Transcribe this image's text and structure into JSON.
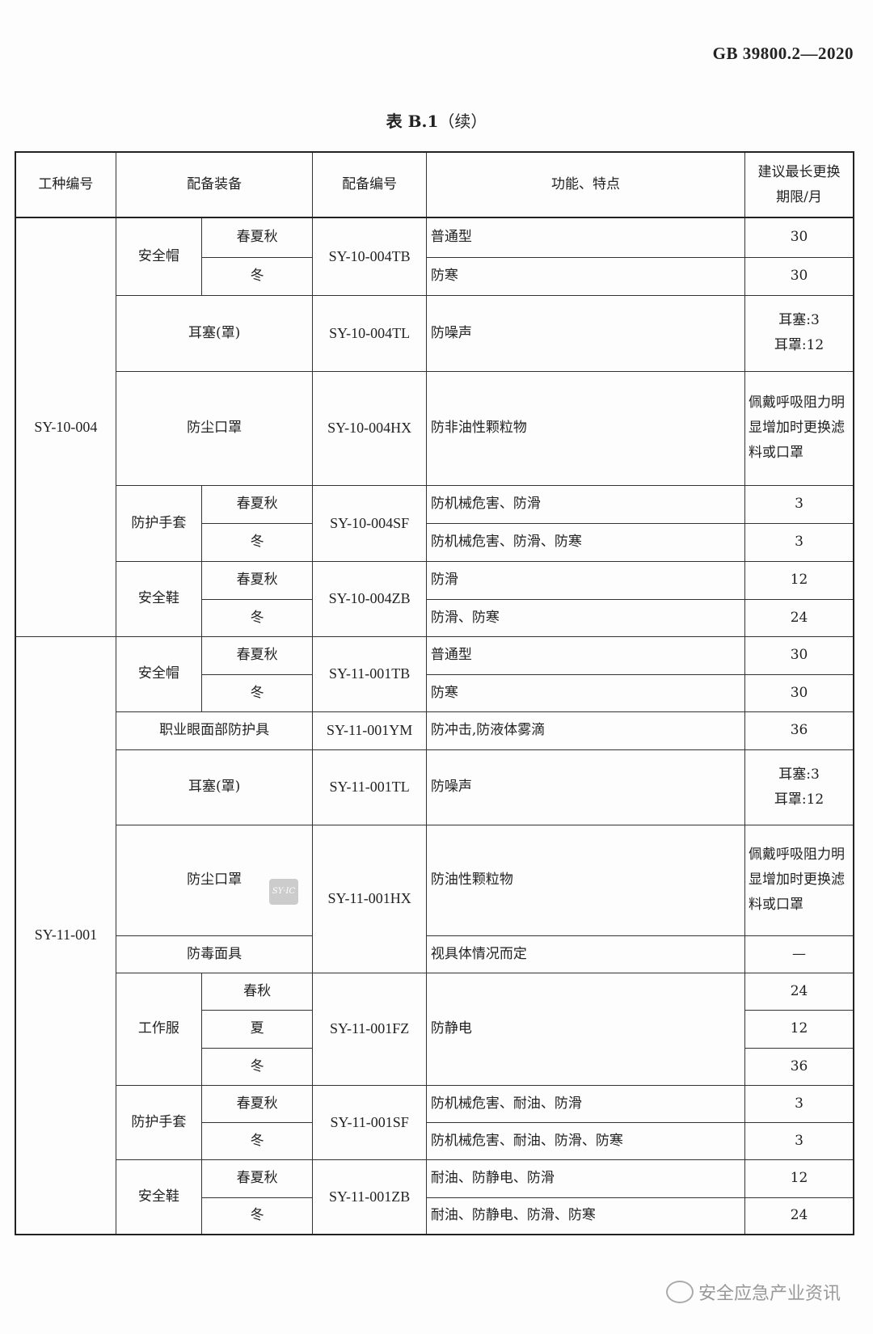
{
  "standard_number": "GB 39800.2—2020",
  "table_title": {
    "label": "表 B.1",
    "suffix": "（续）"
  },
  "headers": [
    "工种编号",
    "配备装备",
    "配备编号",
    "功能、特点",
    "建议最长更换期限/月"
  ],
  "rows": [
    [
      {
        "t": "SY-10-004",
        "rs": 8,
        "c": "id"
      },
      {
        "t": "安全帽",
        "rs": 2
      },
      {
        "t": "春夏秋"
      },
      {
        "t": "SY-10-004TB",
        "rs": 2,
        "c": "id"
      },
      {
        "t": "普通型",
        "c": "left"
      },
      {
        "t": "30"
      }
    ],
    [
      {
        "t": "冬"
      },
      {
        "t": "防寒",
        "c": "left"
      },
      {
        "t": "30"
      }
    ],
    [
      {
        "t": "耳塞(罩)",
        "cs": 2
      },
      {
        "t": "SY-10-004TL",
        "c": "id"
      },
      {
        "t": "防噪声",
        "c": "left"
      },
      {
        "t": "耳塞:3\n耳罩:12"
      }
    ],
    [
      {
        "t": "防尘口罩",
        "cs": 2
      },
      {
        "t": "SY-10-004HX",
        "c": "id"
      },
      {
        "t": "防非油性颗粒物",
        "c": "left"
      },
      {
        "t": "佩戴呼吸阻力明显增加时更换滤料或口罩"
      }
    ],
    [
      {
        "t": "防护手套",
        "rs": 2
      },
      {
        "t": "春夏秋"
      },
      {
        "t": "SY-10-004SF",
        "rs": 2,
        "c": "id"
      },
      {
        "t": "防机械危害、防滑",
        "c": "left"
      },
      {
        "t": "3"
      }
    ],
    [
      {
        "t": "冬"
      },
      {
        "t": "防机械危害、防滑、防寒",
        "c": "left"
      },
      {
        "t": "3"
      }
    ],
    [
      {
        "t": "安全鞋",
        "rs": 2
      },
      {
        "t": "春夏秋"
      },
      {
        "t": "SY-10-004ZB",
        "rs": 2,
        "c": "id"
      },
      {
        "t": "防滑",
        "c": "left"
      },
      {
        "t": "12"
      }
    ],
    [
      {
        "t": "冬"
      },
      {
        "t": "防滑、防寒",
        "c": "left"
      },
      {
        "t": "24"
      }
    ],
    [
      {
        "t": "SY-11-001",
        "rs": 13,
        "c": "id"
      },
      {
        "t": "安全帽",
        "rs": 2
      },
      {
        "t": "春夏秋"
      },
      {
        "t": "SY-11-001TB",
        "rs": 2,
        "c": "id"
      },
      {
        "t": "普通型",
        "c": "left"
      },
      {
        "t": "30"
      }
    ],
    [
      {
        "t": "冬"
      },
      {
        "t": "防寒",
        "c": "left"
      },
      {
        "t": "30"
      }
    ],
    [
      {
        "t": "职业眼面部防护具",
        "cs": 2
      },
      {
        "t": "SY-11-001YM",
        "c": "id"
      },
      {
        "t": "防冲击,防液体雾滴",
        "c": "left"
      },
      {
        "t": "36"
      }
    ],
    [
      {
        "t": "耳塞(罩)",
        "cs": 2
      },
      {
        "t": "SY-11-001TL",
        "c": "id"
      },
      {
        "t": "防噪声",
        "c": "left"
      },
      {
        "t": "耳塞:3\n耳罩:12"
      }
    ],
    [
      {
        "t": "防尘口罩",
        "cs": 2
      },
      {
        "t": "SY-11-001HX",
        "rs": 2,
        "c": "id"
      },
      {
        "t": "防油性颗粒物",
        "c": "left"
      },
      {
        "t": "佩戴呼吸阻力明显增加时更换滤料或口罩"
      }
    ],
    [
      {
        "t": "防毒面具",
        "cs": 2
      },
      {
        "t": "视具体情况而定",
        "c": "left"
      },
      {
        "t": "—"
      }
    ],
    [
      {
        "t": "工作服",
        "rs": 3
      },
      {
        "t": "春秋"
      },
      {
        "t": "SY-11-001FZ",
        "rs": 3,
        "c": "id"
      },
      {
        "t": "防静电",
        "rs": 3,
        "c": "left"
      },
      {
        "t": "24"
      }
    ],
    [
      {
        "t": "夏"
      },
      {
        "t": "12"
      }
    ],
    [
      {
        "t": "冬"
      },
      {
        "t": "36"
      }
    ],
    [
      {
        "t": "防护手套",
        "rs": 2
      },
      {
        "t": "春夏秋"
      },
      {
        "t": "SY-11-001SF",
        "rs": 2,
        "c": "id"
      },
      {
        "t": "防机械危害、耐油、防滑",
        "c": "left"
      },
      {
        "t": "3"
      }
    ],
    [
      {
        "t": "冬"
      },
      {
        "t": "防机械危害、耐油、防滑、防寒",
        "c": "left"
      },
      {
        "t": "3"
      }
    ],
    [
      {
        "t": "安全鞋",
        "rs": 2
      },
      {
        "t": "春夏秋"
      },
      {
        "t": "SY-11-001ZB",
        "rs": 2,
        "c": "id"
      },
      {
        "t": "耐油、防静电、防滑",
        "c": "left"
      },
      {
        "t": "12"
      }
    ],
    [
      {
        "t": "冬"
      },
      {
        "t": "耐油、防静电、防滑、防寒",
        "c": "left"
      },
      {
        "t": "24"
      }
    ]
  ],
  "watermark_logo": "SY-IC",
  "footer": {
    "icon": "wechat-icon",
    "text": "安全应急产业资讯"
  }
}
